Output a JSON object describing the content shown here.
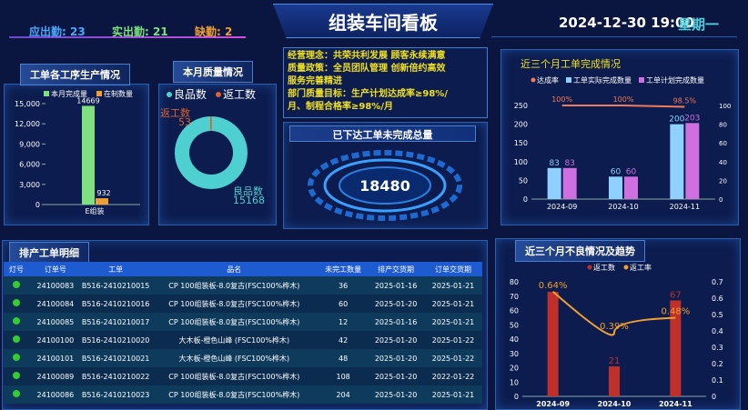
{
  "header": {
    "title": "组装车间看板",
    "datetime": "2024-12-30 19:00",
    "weekday": "星期一"
  },
  "attendance": {
    "expected_label": "应出勤:",
    "expected_value": "23",
    "actual_label": "实出勤:",
    "actual_value": "21",
    "absent_label": "缺勤:",
    "absent_value": "2"
  },
  "colors": {
    "accent_blue": "#4aa8ff",
    "green": "#7fe07f",
    "orange": "#f0a030",
    "pink": "#d070e0",
    "light_blue": "#8fd0ff",
    "teal": "#4fd0d0",
    "red": "#c0302a"
  },
  "process_panel": {
    "title": "工单各工序生产情况",
    "chart_data": {
      "type": "bar",
      "categories": [
        "E组装"
      ],
      "series": [
        {
          "name": "本月完成量",
          "values": [
            14669
          ],
          "color": "#7fe07f"
        },
        {
          "name": "在制数量",
          "values": [
            932
          ],
          "color": "#f0a030"
        }
      ],
      "yticks": [
        "15,000",
        "12,000",
        "9,000",
        "6,000",
        "3,000",
        "0"
      ],
      "ylim": [
        0,
        15000
      ],
      "legend": "top"
    }
  },
  "quality_panel": {
    "title": "本月质量情况",
    "chart_data": {
      "type": "pie",
      "series": [
        {
          "name": "良品数",
          "value": 15168,
          "color": "#4fd0d0"
        },
        {
          "name": "返工数",
          "value": 53,
          "color": "#e0602a"
        }
      ],
      "legend": "top"
    }
  },
  "philosophy": {
    "lines": [
      "经营理念：共荣共利发展 顾客永续满意",
      "质量政策：全员团队管理 创新倍约高效",
      "服务完善精进",
      "部门质量目标：生产计划达成率≥98%/",
      "月、制程合格率≥98%/月"
    ]
  },
  "unfinished": {
    "title": "已下达工单未完成总量",
    "value": "18480"
  },
  "completion_panel": {
    "title": "近三个月工单完成情况",
    "chart_data": {
      "type": "bar",
      "categories": [
        "2024-09",
        "2024-10",
        "2024-11"
      ],
      "series": [
        {
          "name": "达成率",
          "values": [
            100,
            100,
            98.5
          ],
          "labels": [
            "100%",
            "100%",
            "98.5%"
          ],
          "color": "#f07a5a",
          "kind": "line"
        },
        {
          "name": "工单实际完成数量",
          "values": [
            83,
            60,
            200
          ],
          "color": "#8fd0ff"
        },
        {
          "name": "工单计划完成数量",
          "values": [
            83,
            60,
            203
          ],
          "color": "#d070e0"
        }
      ],
      "yticks_left": [
        "250",
        "200",
        "150",
        "100",
        "50",
        "0"
      ],
      "yticks_right": [
        "100",
        "80",
        "60",
        "40",
        "20",
        "0"
      ],
      "ylim": [
        0,
        250
      ],
      "ylim_right": [
        0,
        100
      ],
      "legend": "top"
    }
  },
  "schedule_panel": {
    "title": "排产工单明细",
    "columns": [
      "灯号",
      "订单号",
      "工单",
      "品名",
      "未完工数量",
      "排产交货期",
      "订单交货期"
    ],
    "rows": [
      [
        "24100083",
        "B516-2410210015",
        "CP 100组装板-8.0复古(FSC100%桦木)",
        "36",
        "2025-01-16",
        "2025-01-21"
      ],
      [
        "24100084",
        "B516-2410210016",
        "CP 100组装板-8.0复古(FSC100%桦木)",
        "60",
        "2025-01-20",
        "2025-01-21"
      ],
      [
        "24100085",
        "B516-2410210017",
        "CP 100组装板-8.0复古(FSC100%桦木)",
        "12",
        "2025-01-16",
        "2025-01-21"
      ],
      [
        "24100100",
        "B516-2410210020",
        "大木板-橙色山峰 (FSC100%桦木)",
        "42",
        "2025-01-20",
        "2025-01-22"
      ],
      [
        "24100101",
        "B516-2410210021",
        "大木板-橙色山峰 (FSC100%桦木)",
        "48",
        "2025-01-20",
        "2025-01-22"
      ],
      [
        "24100089",
        "B516-2410210022",
        "CP 100组装板-8.0复古(FSC100%桦木)",
        "108",
        "2025-01-20",
        "2022-01-22"
      ],
      [
        "24100086",
        "B516-2410210023",
        "CP 100组装板-8.0复古(FSC100%桦木)",
        "204",
        "2025-01-20",
        "2025-01-21"
      ]
    ]
  },
  "defect_panel": {
    "title": "近三个月不良情况及趋势",
    "chart_data": {
      "type": "bar",
      "categories": [
        "2024-09",
        "2024-10",
        "2024-11"
      ],
      "series": [
        {
          "name": "返工数",
          "values": [
            73,
            21,
            67
          ],
          "labels": [
            "",
            "21",
            "67"
          ],
          "color": "#c0302a"
        },
        {
          "name": "返工率",
          "values": [
            0.64,
            0.39,
            0.48
          ],
          "labels": [
            "0.64%",
            "0.39%",
            "0.48%"
          ],
          "color": "#f0a030",
          "kind": "line"
        }
      ],
      "yticks_left": [
        "80",
        "70",
        "60",
        "50",
        "40",
        "30",
        "20",
        "10",
        "0"
      ],
      "yticks_right": [
        "0.7",
        "0.6",
        "0.5",
        "0.4",
        "0.3",
        "0.2",
        "0.1",
        "0"
      ],
      "ylim": [
        0,
        80
      ],
      "ylim_right": [
        0,
        0.7
      ],
      "legend": "top"
    }
  }
}
